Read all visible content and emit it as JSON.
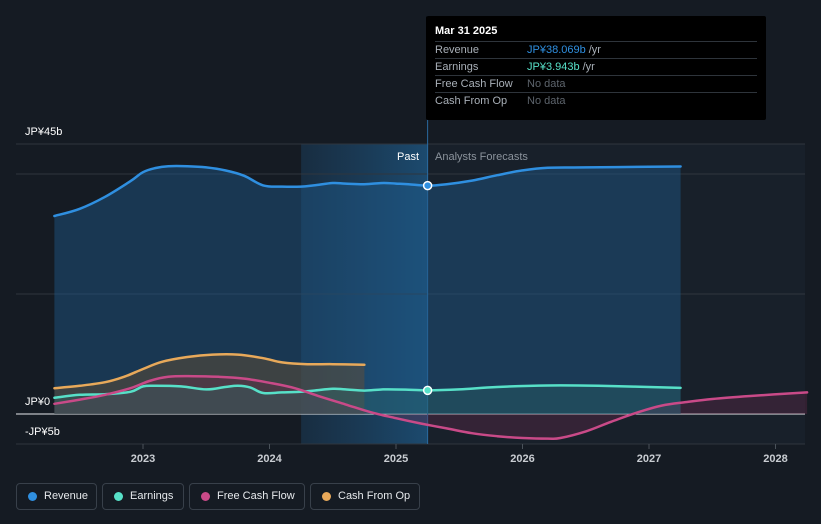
{
  "chart_data": {
    "type": "line",
    "x_ticks": [
      "2023",
      "2024",
      "2025",
      "2026",
      "2027",
      "2028"
    ],
    "y_tick_labels": [
      "JP¥45b",
      "JP¥0",
      "-JP¥5b"
    ],
    "ylim": [
      -5,
      45
    ],
    "divider_labels": {
      "past": "Past",
      "forecast": "Analysts Forecasts"
    },
    "past_end": 2025.25,
    "grid": true,
    "series": [
      {
        "name": "Revenue",
        "color": "#2f8fe0",
        "points": [
          [
            2022.3,
            33
          ],
          [
            2022.5,
            34.2
          ],
          [
            2022.7,
            36.2
          ],
          [
            2022.9,
            38.8
          ],
          [
            2023.0,
            40.3
          ],
          [
            2023.1,
            41
          ],
          [
            2023.2,
            41.3
          ],
          [
            2023.35,
            41.3
          ],
          [
            2023.5,
            41.1
          ],
          [
            2023.65,
            40.6
          ],
          [
            2023.8,
            39.7
          ],
          [
            2023.95,
            38.1
          ],
          [
            2024.1,
            37.9
          ],
          [
            2024.25,
            37.9
          ],
          [
            2024.35,
            38.1
          ],
          [
            2024.5,
            38.5
          ],
          [
            2024.6,
            38.4
          ],
          [
            2024.75,
            38.3
          ],
          [
            2024.9,
            38.5
          ],
          [
            2025.0,
            38.4
          ],
          [
            2025.1,
            38.3
          ],
          [
            2025.25,
            38.07
          ],
          [
            2025.4,
            38.3
          ],
          [
            2025.6,
            38.9
          ],
          [
            2025.8,
            39.8
          ],
          [
            2026.0,
            40.6
          ],
          [
            2026.2,
            41.05
          ],
          [
            2026.5,
            41.1
          ],
          [
            2027.0,
            41.2
          ],
          [
            2027.25,
            41.25
          ]
        ]
      },
      {
        "name": "Earnings",
        "color": "#57e0c8",
        "points": [
          [
            2022.3,
            2.7
          ],
          [
            2022.5,
            3.2
          ],
          [
            2022.7,
            3.3
          ],
          [
            2022.9,
            3.7
          ],
          [
            2023.0,
            4.6
          ],
          [
            2023.1,
            4.7
          ],
          [
            2023.3,
            4.6
          ],
          [
            2023.5,
            4.1
          ],
          [
            2023.65,
            4.5
          ],
          [
            2023.75,
            4.7
          ],
          [
            2023.85,
            4.4
          ],
          [
            2023.95,
            3.5
          ],
          [
            2024.1,
            3.6
          ],
          [
            2024.25,
            3.7
          ],
          [
            2024.35,
            3.9
          ],
          [
            2024.5,
            4.2
          ],
          [
            2024.6,
            4.1
          ],
          [
            2024.75,
            3.9
          ],
          [
            2024.9,
            4.1
          ],
          [
            2025.1,
            4.05
          ],
          [
            2025.25,
            3.94
          ],
          [
            2025.5,
            4.1
          ],
          [
            2025.8,
            4.5
          ],
          [
            2026.2,
            4.75
          ],
          [
            2026.6,
            4.7
          ],
          [
            2027.25,
            4.35
          ]
        ]
      },
      {
        "name": "Free Cash Flow",
        "color": "#c94a88",
        "points": [
          [
            2022.3,
            1.7
          ],
          [
            2022.5,
            2.4
          ],
          [
            2022.7,
            3.2
          ],
          [
            2022.9,
            4.3
          ],
          [
            2023.05,
            5.5
          ],
          [
            2023.2,
            6.2
          ],
          [
            2023.4,
            6.3
          ],
          [
            2023.6,
            6.2
          ],
          [
            2023.8,
            5.9
          ],
          [
            2024.0,
            5.2
          ],
          [
            2024.2,
            4.3
          ],
          [
            2024.4,
            2.9
          ],
          [
            2024.6,
            1.6
          ],
          [
            2024.8,
            0.3
          ],
          [
            2025.0,
            -0.7
          ],
          [
            2025.2,
            -1.6
          ],
          [
            2025.4,
            -2.4
          ],
          [
            2025.6,
            -3.2
          ],
          [
            2025.8,
            -3.7
          ],
          [
            2026.0,
            -4.0
          ],
          [
            2026.2,
            -4.1
          ],
          [
            2026.3,
            -4.0
          ],
          [
            2026.5,
            -2.9
          ],
          [
            2026.7,
            -1.3
          ],
          [
            2026.9,
            0.2
          ],
          [
            2027.1,
            1.4
          ],
          [
            2027.3,
            2.0
          ],
          [
            2027.5,
            2.5
          ],
          [
            2027.8,
            3.0
          ],
          [
            2028.25,
            3.6
          ]
        ]
      },
      {
        "name": "Cash From Op",
        "color": "#e8a95a",
        "points": [
          [
            2022.3,
            4.3
          ],
          [
            2022.5,
            4.7
          ],
          [
            2022.7,
            5.3
          ],
          [
            2022.85,
            6.2
          ],
          [
            2023.0,
            7.5
          ],
          [
            2023.15,
            8.7
          ],
          [
            2023.35,
            9.5
          ],
          [
            2023.55,
            9.9
          ],
          [
            2023.75,
            9.9
          ],
          [
            2023.95,
            9.3
          ],
          [
            2024.1,
            8.6
          ],
          [
            2024.3,
            8.3
          ],
          [
            2024.5,
            8.3
          ],
          [
            2024.75,
            8.2
          ]
        ]
      }
    ]
  },
  "tooltip": {
    "date": "Mar 31 2025",
    "rows": [
      {
        "label": "Revenue",
        "value": "JP¥38.069b",
        "unit": "/yr",
        "color": "#2f8fe0"
      },
      {
        "label": "Earnings",
        "value": "JP¥3.943b",
        "unit": "/yr",
        "color": "#57e0c8"
      },
      {
        "label": "Free Cash Flow",
        "value": "No data",
        "unit": ""
      },
      {
        "label": "Cash From Op",
        "value": "No data",
        "unit": ""
      }
    ]
  },
  "legend": [
    {
      "label": "Revenue",
      "color": "#2f8fe0"
    },
    {
      "label": "Earnings",
      "color": "#57e0c8"
    },
    {
      "label": "Free Cash Flow",
      "color": "#c94a88"
    },
    {
      "label": "Cash From Op",
      "color": "#e8a95a"
    }
  ]
}
